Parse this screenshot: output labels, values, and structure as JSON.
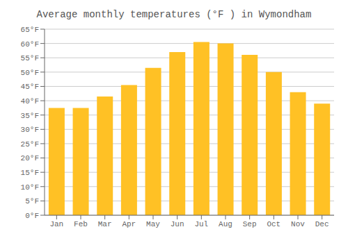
{
  "chart_data": {
    "type": "bar",
    "title": "Average monthly temperatures (°F ) in Wymondham",
    "categories": [
      "Jan",
      "Feb",
      "Mar",
      "Apr",
      "May",
      "Jun",
      "Jul",
      "Aug",
      "Sep",
      "Oct",
      "Nov",
      "Dec"
    ],
    "values": [
      37.5,
      37.5,
      41.5,
      45.5,
      51.5,
      57.0,
      60.5,
      60.0,
      56.0,
      50.0,
      43.0,
      39.0
    ],
    "color": "#FFC125",
    "ylim": [
      0,
      65
    ],
    "yticks": [
      {
        "value": 0,
        "label": "0°F"
      },
      {
        "value": 5,
        "label": "5°F"
      },
      {
        "value": 10,
        "label": "10°F"
      },
      {
        "value": 15,
        "label": "15°F"
      },
      {
        "value": 20,
        "label": "20°F"
      },
      {
        "value": 25,
        "label": "25°F"
      },
      {
        "value": 30,
        "label": "30°F"
      },
      {
        "value": 35,
        "label": "35°F"
      },
      {
        "value": 40,
        "label": "40°F"
      },
      {
        "value": 45,
        "label": "45°F"
      },
      {
        "value": 50,
        "label": "50°F"
      },
      {
        "value": 55,
        "label": "55°F"
      },
      {
        "value": 60,
        "label": "60°F"
      },
      {
        "value": 65,
        "label": "65°F"
      }
    ],
    "grid": true
  }
}
